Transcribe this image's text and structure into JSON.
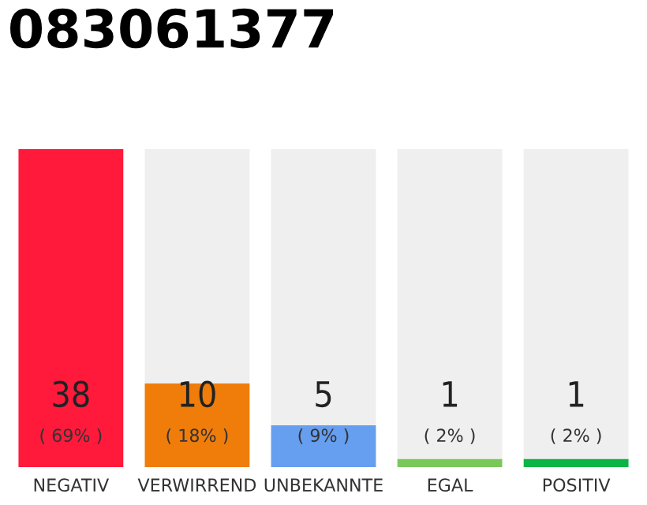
{
  "chart_data": {
    "type": "bar",
    "title": "083061377",
    "stacked": true,
    "categories": [
      "NEGATIV",
      "VERWIRREND",
      "UNBEKANNTE",
      "EGAL",
      "POSITIV"
    ],
    "series": [
      {
        "colors": [
          "#ff1a3c",
          "#f07d0a",
          "#669ef0",
          "#7ac85a",
          "#0ab446"
        ],
        "values": [
          38,
          10,
          5,
          1,
          1
        ],
        "value_labels": [
          "38",
          "10",
          "5",
          "1",
          "1"
        ]
      },
      {
        "color": "#efefef",
        "values": [
          0,
          28,
          33,
          37,
          37
        ],
        "value_labels": [
          null,
          null,
          null,
          null,
          null
        ]
      }
    ],
    "annotations": [
      "( 69% )",
      "( 18% )",
      "( 9% )",
      "( 2% )",
      "( 2% )"
    ],
    "grid": false,
    "legend": false
  }
}
